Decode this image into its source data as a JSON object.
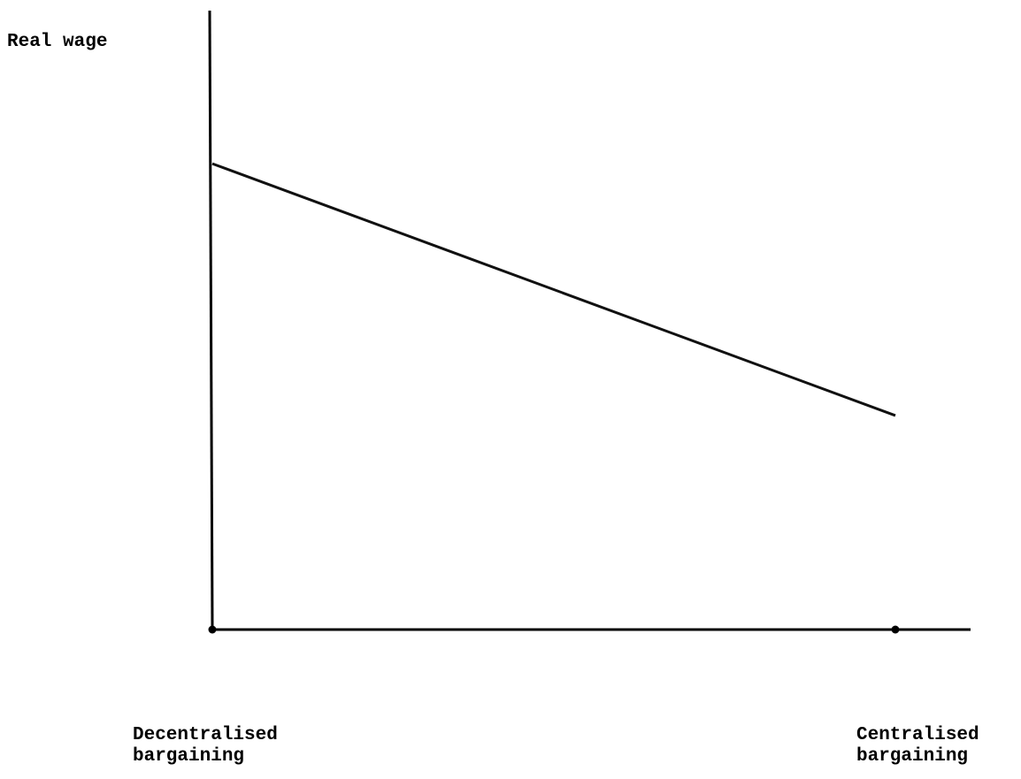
{
  "chart_data": {
    "type": "line",
    "title": "",
    "ylabel": "Real wage",
    "xlabel": "",
    "x_categories": [
      {
        "line1": "Decentralised",
        "line2": "bargaining"
      },
      {
        "line1": "Centralised",
        "line2": "bargaining"
      }
    ],
    "x": [
      0,
      1
    ],
    "series": [
      {
        "values": [
          0.74,
          0.34
        ]
      }
    ],
    "xlim": [
      0,
      1.1
    ],
    "ylim": [
      0,
      1
    ],
    "grid": false,
    "legend": "none",
    "colors": {
      "line": "#111111",
      "axis": "#000000"
    }
  }
}
